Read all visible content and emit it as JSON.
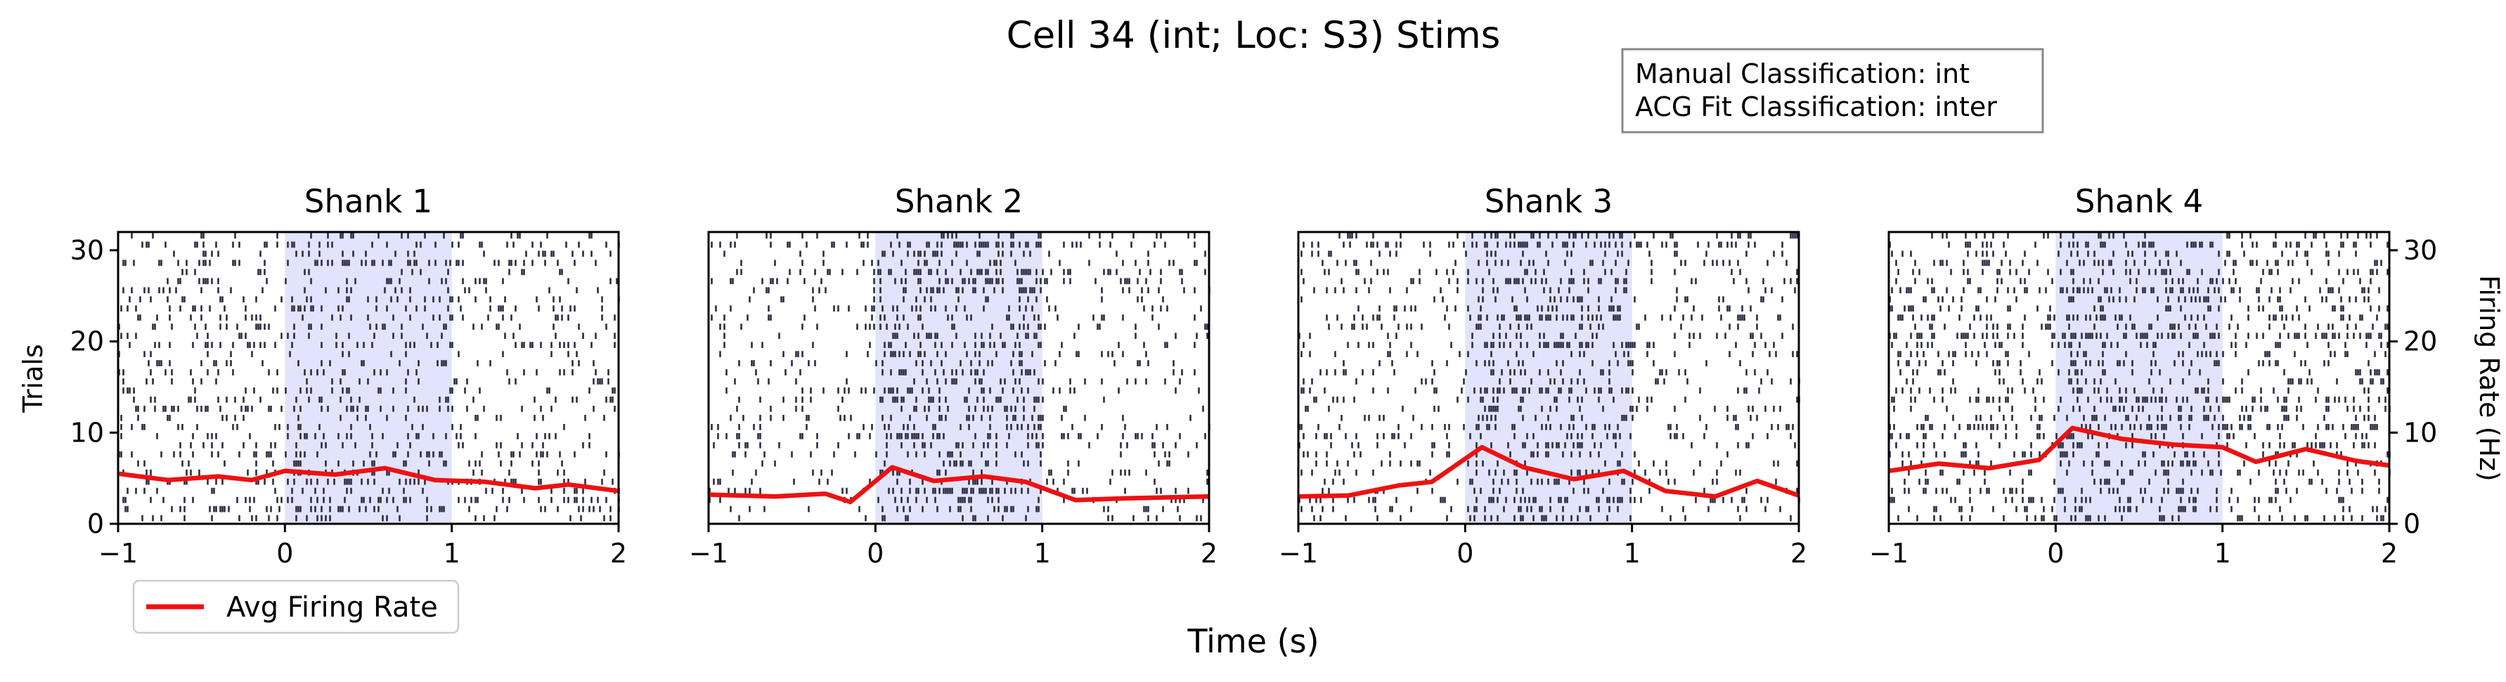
{
  "figure": {
    "title": "Cell 34 (int; Loc: S3) Stims",
    "xlabel": "Time (s)",
    "ylabel_left": "Trials",
    "ylabel_right": "Firing Rate (Hz)",
    "info_box": [
      "Manual Classification: int",
      "ACG Fit Classification: inter"
    ],
    "legend": {
      "label": "Avg Firing Rate",
      "color": "#ee1111",
      "placement": "lower-left"
    }
  },
  "chart_data": [
    {
      "type": "raster",
      "title": "Shank 1",
      "xlim": [
        -1,
        2
      ],
      "ylim_trials": [
        0,
        32
      ],
      "ylim_rate": [
        0,
        32
      ],
      "x_ticks": [
        "−1",
        "0",
        "1",
        "2"
      ],
      "y_ticks": [
        "0",
        "10",
        "20",
        "30"
      ],
      "stim_window": [
        0,
        1
      ],
      "spike_density": {
        "baseline": 0.28,
        "stim": 0.38
      },
      "avg_firing_rate": {
        "x": [
          -1,
          -0.7,
          -0.4,
          -0.2,
          0,
          0.3,
          0.6,
          0.9,
          1.2,
          1.5,
          1.7,
          2.0
        ],
        "y": [
          5.5,
          4.8,
          5.2,
          4.8,
          5.8,
          5.4,
          6.1,
          4.8,
          4.6,
          3.9,
          4.3,
          3.6
        ]
      }
    },
    {
      "type": "raster",
      "title": "Shank 2",
      "xlim": [
        -1,
        2
      ],
      "ylim_trials": [
        0,
        32
      ],
      "ylim_rate": [
        0,
        32
      ],
      "x_ticks": [
        "−1",
        "0",
        "1",
        "2"
      ],
      "y_ticks": [],
      "stim_window": [
        0,
        1
      ],
      "spike_density": {
        "baseline": 0.22,
        "stim": 0.55
      },
      "avg_firing_rate": {
        "x": [
          -1,
          -0.6,
          -0.3,
          -0.15,
          0.1,
          0.35,
          0.65,
          0.9,
          1.2,
          1.5,
          2.0
        ],
        "y": [
          3.2,
          3.0,
          3.3,
          2.4,
          6.2,
          4.7,
          5.2,
          4.6,
          2.6,
          2.8,
          3.0
        ]
      }
    },
    {
      "type": "raster",
      "title": "Shank 3",
      "xlim": [
        -1,
        2
      ],
      "ylim_trials": [
        0,
        32
      ],
      "ylim_rate": [
        0,
        32
      ],
      "x_ticks": [
        "−1",
        "0",
        "1",
        "2"
      ],
      "y_ticks": [],
      "stim_window": [
        0,
        1
      ],
      "spike_density": {
        "baseline": 0.25,
        "stim": 0.55
      },
      "avg_firing_rate": {
        "x": [
          -1,
          -0.7,
          -0.4,
          -0.2,
          0.1,
          0.35,
          0.65,
          0.95,
          1.2,
          1.5,
          1.75,
          2.0
        ],
        "y": [
          3.0,
          3.1,
          4.2,
          4.6,
          8.4,
          6.2,
          4.9,
          5.8,
          3.6,
          3.0,
          4.7,
          3.1
        ]
      }
    },
    {
      "type": "raster",
      "title": "Shank 4",
      "xlim": [
        -1,
        2
      ],
      "ylim_trials": [
        0,
        32
      ],
      "ylim_rate": [
        0,
        32
      ],
      "x_ticks": [
        "−1",
        "0",
        "1",
        "2"
      ],
      "y_ticks": [
        "0",
        "10",
        "20",
        "30"
      ],
      "stim_window": [
        0,
        1
      ],
      "spike_density": {
        "baseline": 0.42,
        "stim": 0.55
      },
      "avg_firing_rate": {
        "x": [
          -1,
          -0.7,
          -0.4,
          -0.1,
          0.1,
          0.4,
          0.7,
          1.0,
          1.2,
          1.5,
          1.8,
          2.0
        ],
        "y": [
          5.8,
          6.6,
          6.1,
          7.0,
          10.5,
          9.3,
          8.7,
          8.4,
          6.8,
          8.2,
          6.9,
          6.4
        ]
      }
    }
  ]
}
